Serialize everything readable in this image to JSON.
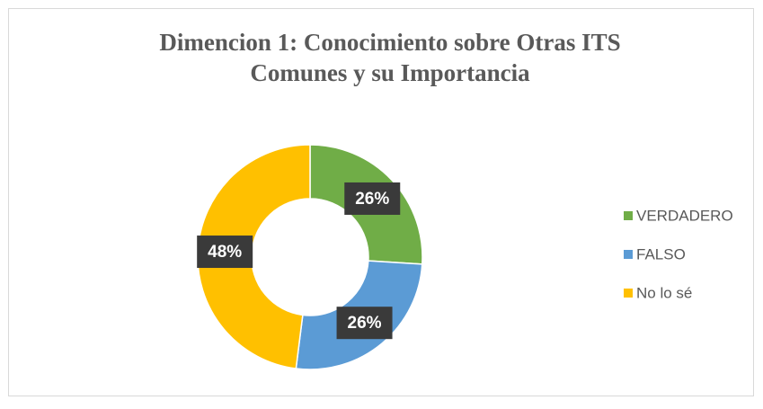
{
  "chart_data": {
    "type": "doughnut",
    "title": "Dimencion 1: Conocimiento sobre Otras ITS Comunes y su Importancia",
    "categories": [
      "VERDADERO",
      "FALSO",
      "No lo sé"
    ],
    "values": [
      26,
      26,
      48
    ],
    "value_labels": [
      "26%",
      "26%",
      "48%"
    ],
    "colors": [
      "#70ad47",
      "#5b9bd5",
      "#ffc000"
    ],
    "legend": "right"
  }
}
